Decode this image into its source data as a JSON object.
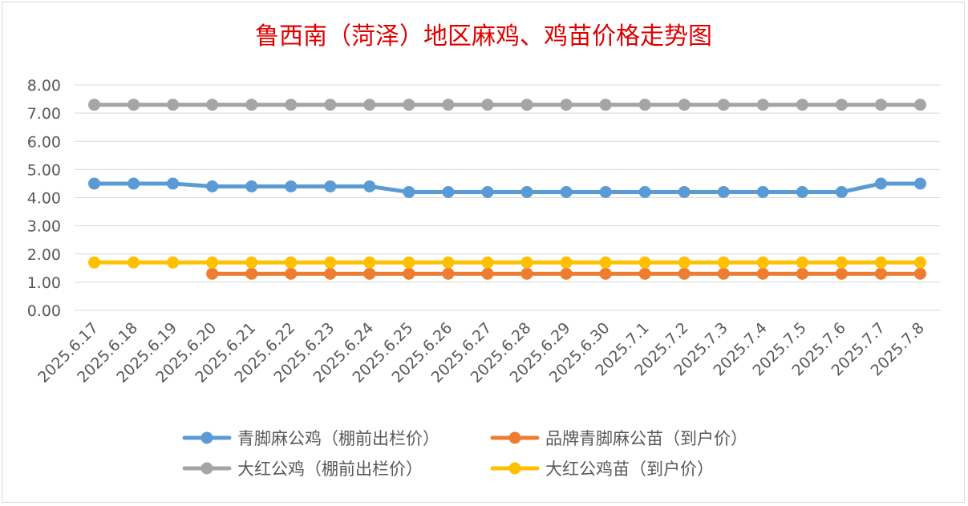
{
  "chart_data": {
    "type": "line",
    "title": "鲁西南（菏泽）地区麻鸡、鸡苗价格走势图",
    "xlabel": "",
    "ylabel": "",
    "ylim": [
      0,
      8
    ],
    "y_ticks": [
      "0.00",
      "1.00",
      "2.00",
      "3.00",
      "4.00",
      "5.00",
      "6.00",
      "7.00",
      "8.00"
    ],
    "grid": "horizontal",
    "legend_position": "bottom",
    "categories": [
      "2025.6.17",
      "2025.6.18",
      "2025.6.19",
      "2025.6.20",
      "2025.6.21",
      "2025.6.22",
      "2025.6.23",
      "2025.6.24",
      "2025.6.25",
      "2025.6.26",
      "2025.6.27",
      "2025.6.28",
      "2025.6.29",
      "2025.6.30",
      "2025.7.1",
      "2025.7.2",
      "2025.7.3",
      "2025.7.4",
      "2025.7.5",
      "2025.7.6",
      "2025.7.7",
      "2025.7.8"
    ],
    "series": [
      {
        "name": "青脚麻公鸡（棚前出栏价）",
        "color": "#5b9bd5",
        "values": [
          4.5,
          4.5,
          4.5,
          4.4,
          4.4,
          4.4,
          4.4,
          4.4,
          4.2,
          4.2,
          4.2,
          4.2,
          4.2,
          4.2,
          4.2,
          4.2,
          4.2,
          4.2,
          4.2,
          4.2,
          4.5,
          4.5
        ]
      },
      {
        "name": "品牌青脚麻公苗（到户价）",
        "color": "#ed7d31",
        "values": [
          null,
          null,
          null,
          1.3,
          1.3,
          1.3,
          1.3,
          1.3,
          1.3,
          1.3,
          1.3,
          1.3,
          1.3,
          1.3,
          1.3,
          1.3,
          1.3,
          1.3,
          1.3,
          1.3,
          1.3,
          1.3
        ]
      },
      {
        "name": "大红公鸡（棚前出栏价）",
        "color": "#a5a5a5",
        "values": [
          7.3,
          7.3,
          7.3,
          7.3,
          7.3,
          7.3,
          7.3,
          7.3,
          7.3,
          7.3,
          7.3,
          7.3,
          7.3,
          7.3,
          7.3,
          7.3,
          7.3,
          7.3,
          7.3,
          7.3,
          7.3,
          7.3
        ]
      },
      {
        "name": "大红公鸡苗（到户价）",
        "color": "#ffc000",
        "values": [
          1.7,
          1.7,
          1.7,
          1.7,
          1.7,
          1.7,
          1.7,
          1.7,
          1.7,
          1.7,
          1.7,
          1.7,
          1.7,
          1.7,
          1.7,
          1.7,
          1.7,
          1.7,
          1.7,
          1.7,
          1.7,
          1.7
        ]
      }
    ],
    "title_color": "#e00000",
    "gridline_color": "#d9d9d9"
  }
}
